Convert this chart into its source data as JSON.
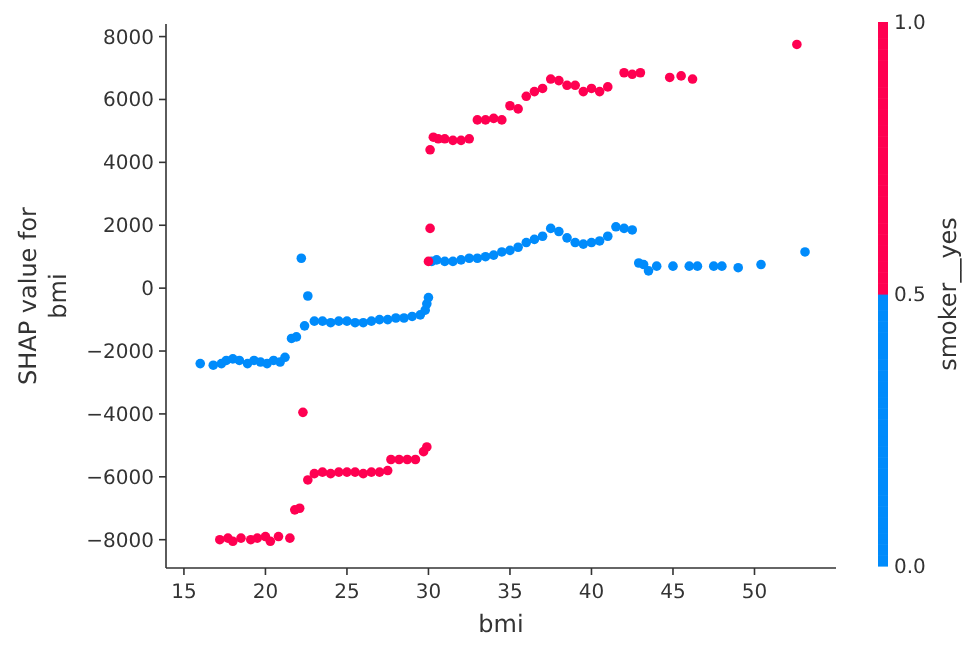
{
  "chart_data": {
    "type": "scatter",
    "xlabel": "bmi",
    "ylabel": "SHAP value for\nbmi",
    "clabel": "smoker__yes",
    "xlim": [
      13.9,
      55
    ],
    "xticks": [
      15,
      20,
      25,
      30,
      35,
      40,
      45,
      50
    ],
    "ylim": [
      -8900,
      8400
    ],
    "yticks": [
      -8000,
      -6000,
      -4000,
      -2000,
      0,
      2000,
      4000,
      6000,
      8000
    ],
    "clim": [
      0,
      1
    ],
    "cticks": [
      {
        "value": 0,
        "label": "0.0"
      },
      {
        "value": 0.5,
        "label": "0.5"
      },
      {
        "value": 1,
        "label": "1.0"
      }
    ],
    "marker": "circle",
    "grid": false,
    "series": [
      {
        "color": "#008bfb",
        "x": [
          16,
          16.8,
          17.3,
          17.6,
          18,
          18.4,
          18.9,
          19.3,
          19.7,
          20.1,
          20.5,
          20.9,
          21.2,
          21.6,
          21.9,
          22.2,
          22.4,
          22.6,
          23,
          23.5,
          24,
          24.5,
          25,
          25.5,
          26,
          26.5,
          27,
          27.5,
          28,
          28.5,
          29,
          29.5,
          29.8,
          29.9,
          30,
          30.2,
          30.5,
          31,
          31.5,
          32,
          32.5,
          33,
          33.5,
          34,
          34.5,
          35,
          35.5,
          36,
          36.5,
          37,
          37.5,
          38,
          38.5,
          39,
          39.5,
          40,
          40.5,
          41,
          41.5,
          42,
          42.5,
          42.9,
          43.2,
          43.5,
          44,
          45,
          46,
          46.5,
          47.5,
          48,
          49,
          50.4,
          53.1
        ],
        "values": [
          -2400,
          -2450,
          -2400,
          -2300,
          -2250,
          -2300,
          -2400,
          -2300,
          -2350,
          -2400,
          -2300,
          -2350,
          -2200,
          -1600,
          -1550,
          950,
          -1200,
          -250,
          -1050,
          -1050,
          -1100,
          -1050,
          -1050,
          -1100,
          -1100,
          -1050,
          -1000,
          -1000,
          -950,
          -950,
          -900,
          -850,
          -700,
          -500,
          -300,
          850,
          900,
          850,
          850,
          900,
          950,
          950,
          1000,
          1050,
          1150,
          1200,
          1300,
          1450,
          1550,
          1650,
          1900,
          1800,
          1600,
          1450,
          1400,
          1450,
          1500,
          1650,
          1950,
          1900,
          1850,
          800,
          750,
          550,
          700,
          700,
          700,
          700,
          700,
          700,
          650,
          750,
          1150
        ]
      },
      {
        "color": "#ff0051",
        "x": [
          17.2,
          17.7,
          18,
          18.5,
          19.1,
          19.5,
          20,
          20.3,
          20.8,
          21.5,
          21.8,
          22.1,
          22.3,
          22.6,
          23,
          23.5,
          24,
          24.5,
          25,
          25.5,
          26,
          26.5,
          27,
          27.5,
          27.7,
          28.2,
          28.7,
          29.2,
          29.7,
          29.9,
          30,
          30.1,
          30.1,
          30.3,
          30.6,
          31,
          31.5,
          32,
          32.5,
          33,
          33.5,
          34,
          34.5,
          35,
          35.5,
          36,
          36.5,
          37,
          37.5,
          38,
          38.5,
          39,
          39.5,
          40,
          40.5,
          41,
          42,
          42.5,
          43,
          44.8,
          45.5,
          46.2,
          52.6
        ],
        "values": [
          -8000,
          -7950,
          -8050,
          -7950,
          -8000,
          -7950,
          -7900,
          -8050,
          -7900,
          -7950,
          -7050,
          -7000,
          -3950,
          -6100,
          -5900,
          -5850,
          -5900,
          -5850,
          -5850,
          -5850,
          -5900,
          -5850,
          -5850,
          -5800,
          -5450,
          -5450,
          -5450,
          -5450,
          -5200,
          -5050,
          850,
          1900,
          4400,
          4800,
          4750,
          4750,
          4700,
          4700,
          4750,
          5350,
          5350,
          5400,
          5350,
          5800,
          5700,
          6100,
          6250,
          6350,
          6650,
          6600,
          6450,
          6450,
          6250,
          6350,
          6250,
          6400,
          6850,
          6800,
          6850,
          6700,
          6750,
          6650,
          7750
        ]
      }
    ]
  }
}
